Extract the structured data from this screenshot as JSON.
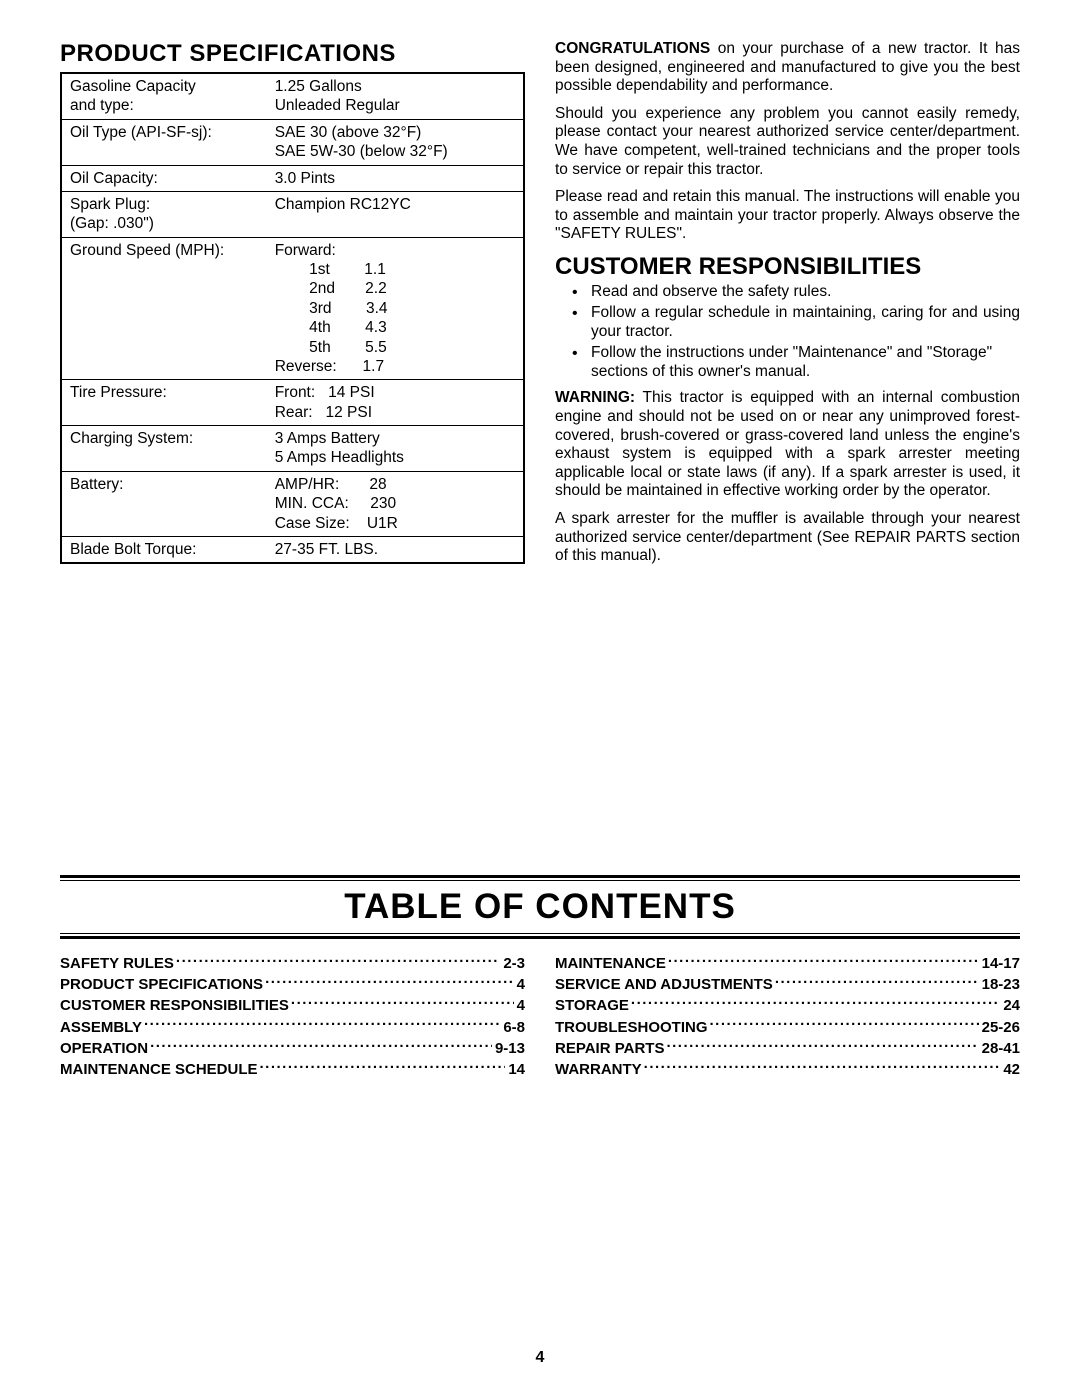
{
  "specs": {
    "heading": "PRODUCT SPECIFICATIONS",
    "rows": [
      {
        "label": "Gasoline Capacity\nand type:",
        "value": "1.25 Gallons\nUnleaded Regular"
      },
      {
        "label": "Oil Type (API-SF-sj):",
        "value": "SAE 30 (above 32°F)\nSAE 5W-30 (below 32°F)"
      },
      {
        "label": "Oil Capacity:",
        "value": "3.0 Pints"
      },
      {
        "label": "Spark Plug:\n(Gap:  .030\")",
        "value": "Champion RC12YC"
      },
      {
        "label": "Ground Speed (MPH):",
        "value": "Forward:\n        1st        1.1\n        2nd       2.2\n        3rd        3.4\n        4th        4.3\n        5th        5.5\nReverse:      1.7"
      },
      {
        "label": "Tire Pressure:",
        "value": "Front:   14 PSI\nRear:   12 PSI"
      },
      {
        "label": "Charging System:",
        "value": "3 Amps Battery\n5 Amps Headlights"
      },
      {
        "label": "Battery:",
        "value": "AMP/HR:       28\nMIN. CCA:     230\nCase Size:    U1R"
      },
      {
        "label": "Blade Bolt Torque:",
        "value": "27-35 FT. LBS."
      }
    ]
  },
  "right_col": {
    "congrats_lead": "CONGRATULATIONS",
    "congrats_text": " on your purchase of a new tractor. It has been designed, engineered and manufactured to give you the best possible dependability and performance.",
    "p2": "Should you experience any problem you cannot easily remedy, please contact your nearest authorized service center/department.  We have competent, well-trained technicians and the proper tools to service or repair this tractor.",
    "p3": "Please read and retain this manual.  The instructions will enable you to assemble and maintain your tractor properly. Always observe the \"SAFETY RULES\".",
    "cust_resp_heading": "CUSTOMER RESPONSIBILITIES",
    "bullets": [
      "Read and observe the safety rules.",
      "Follow a regular schedule in maintaining, caring for and using your tractor.",
      "Follow the instructions under \"Maintenance\" and \"Storage\" sections of this owner's manual."
    ],
    "warning_lead": "WARNING:",
    "warning_text": "  This tractor is equipped with an internal combustion engine and should not be used on or near any unimproved forest-covered, brush-covered or grass-covered land unless the engine's exhaust system is equipped with a spark arrester meeting applicable local or state laws (if any).  If a spark arrester is used, it should be maintained in effective working order by the operator.",
    "p5": "A spark arrester for the muffler is available through your nearest authorized service center/department  (See REPAIR PARTS section of this manual)."
  },
  "toc": {
    "title": "TABLE OF CONTENTS",
    "left": [
      {
        "label": "SAFETY RULES",
        "page": "2-3"
      },
      {
        "label": "PRODUCT SPECIFICATIONS",
        "page": "4"
      },
      {
        "label": "CUSTOMER RESPONSIBILITIES",
        "page": "4"
      },
      {
        "label": "ASSEMBLY",
        "page": "6-8"
      },
      {
        "label": "OPERATION",
        "page": "9-13"
      },
      {
        "label": "MAINTENANCE SCHEDULE",
        "page": "14"
      }
    ],
    "right": [
      {
        "label": "MAINTENANCE",
        "page": "14-17"
      },
      {
        "label": "SERVICE AND ADJUSTMENTS",
        "page": "18-23"
      },
      {
        "label": "STORAGE",
        "page": "24"
      },
      {
        "label": "TROUBLESHOOTING",
        "page": "25-26"
      },
      {
        "label": "REPAIR PARTS",
        "page": "28-41"
      },
      {
        "label": "WARRANTY",
        "page": "42"
      }
    ]
  },
  "page_number": "4"
}
